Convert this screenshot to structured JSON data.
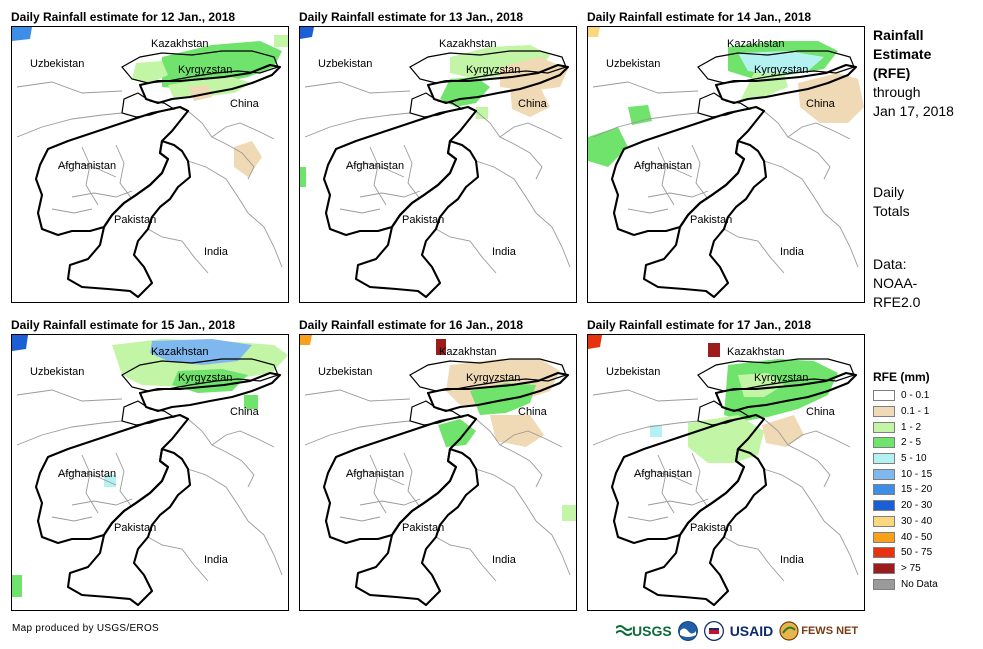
{
  "panels": [
    {
      "title": "Daily Rainfall estimate for 12 Jan., 2018"
    },
    {
      "title": "Daily Rainfall estimate for 13 Jan., 2018"
    },
    {
      "title": "Daily Rainfall estimate for 14 Jan., 2018"
    },
    {
      "title": "Daily Rainfall estimate for 15 Jan., 2018"
    },
    {
      "title": "Daily Rainfall estimate for 16 Jan., 2018"
    },
    {
      "title": "Daily Rainfall estimate for 17 Jan., 2018"
    }
  ],
  "place_labels": {
    "kazakhstan": "Kazakhstan",
    "uzbekistan": "Uzbekistan",
    "kyrgyzstan": "Kyrgyzstan",
    "china": "China",
    "afghanistan": "Afghanistan",
    "pakistan": "Pakistan",
    "india": "India"
  },
  "sidebar": {
    "title": "Rainfall Estimate (RFE)",
    "title_line1": "Rainfall",
    "title_line2": "Estimate",
    "title_line3": "(RFE)",
    "through_line1": "through",
    "through_line2": "Jan 17, 2018",
    "totals_line1": "Daily",
    "totals_line2": "Totals",
    "data_line1": "Data:",
    "data_line2": "NOAA-",
    "data_line3": "RFE2.0"
  },
  "legend": {
    "title": "RFE (mm)",
    "items": [
      {
        "label": "0 - 0.1",
        "color": "#ffffff"
      },
      {
        "label": "0.1 - 1",
        "color": "#f0d9b5"
      },
      {
        "label": "1 - 2",
        "color": "#c2f5a5"
      },
      {
        "label": "2 - 5",
        "color": "#6fe36b"
      },
      {
        "label": "5 - 10",
        "color": "#b4f2f2"
      },
      {
        "label": "10 - 15",
        "color": "#7fb8ef"
      },
      {
        "label": "15 - 20",
        "color": "#3c8ee6"
      },
      {
        "label": "20 - 30",
        "color": "#1a5fd6"
      },
      {
        "label": "30 - 40",
        "color": "#fbd77e"
      },
      {
        "label": "40 - 50",
        "color": "#f9a11a"
      },
      {
        "label": "50 - 75",
        "color": "#e8330f"
      },
      {
        "label": "> 75",
        "color": "#9c1b1b"
      },
      {
        "label": "No Data",
        "color": "#9a9a9a"
      }
    ]
  },
  "footer": {
    "credit": "Map produced by USGS/EROS",
    "logos": [
      "USGS",
      "NOAA",
      "USAID",
      "FEWS NET"
    ]
  }
}
